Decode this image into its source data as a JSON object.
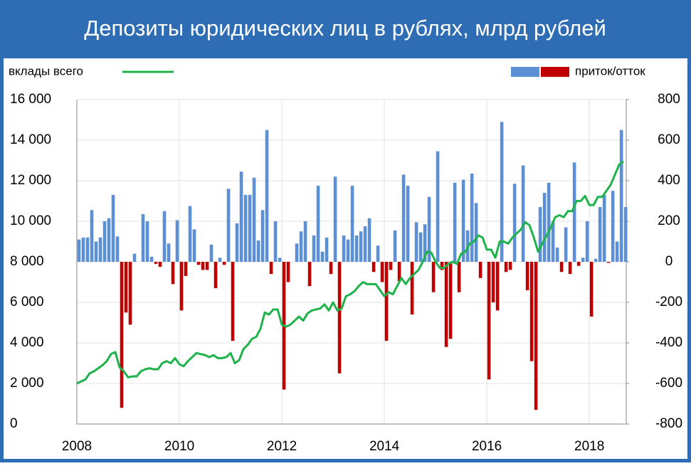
{
  "chart_data": {
    "type": "bar_line",
    "title": "Депозиты юридических лиц в рублях, млрд рублей",
    "x": [
      2008,
      2008.0833,
      2008.1667,
      2008.25,
      2008.3333,
      2008.4167,
      2008.5,
      2008.5833,
      2008.6667,
      2008.75,
      2008.8333,
      2008.9167,
      2009,
      2009.0833,
      2009.1667,
      2009.25,
      2009.3333,
      2009.4167,
      2009.5,
      2009.5833,
      2009.6667,
      2009.75,
      2009.8333,
      2009.9167,
      2010,
      2010.0833,
      2010.1667,
      2010.25,
      2010.3333,
      2010.4167,
      2010.5,
      2010.5833,
      2010.6667,
      2010.75,
      2010.8333,
      2010.9167,
      2011,
      2011.0833,
      2011.1667,
      2011.25,
      2011.3333,
      2011.4167,
      2011.5,
      2011.5833,
      2011.6667,
      2011.75,
      2011.8333,
      2011.9167,
      2012,
      2012.0833,
      2012.1667,
      2012.25,
      2012.3333,
      2012.4167,
      2012.5,
      2012.5833,
      2012.6667,
      2012.75,
      2012.8333,
      2012.9167,
      2013,
      2013.0833,
      2013.1667,
      2013.25,
      2013.3333,
      2013.4167,
      2013.5,
      2013.5833,
      2013.6667,
      2013.75,
      2013.8333,
      2013.9167,
      2014,
      2014.0833,
      2014.1667,
      2014.25,
      2014.3333,
      2014.4167,
      2014.5,
      2014.5833,
      2014.6667,
      2014.75,
      2014.8333,
      2014.9167,
      2015,
      2015.0833,
      2015.1667,
      2015.25,
      2015.3333,
      2015.4167,
      2015.5,
      2015.5833,
      2015.6667,
      2015.75,
      2015.8333,
      2015.9167,
      2016,
      2016.0833,
      2016.1667,
      2016.25,
      2016.3333,
      2016.4167,
      2016.5,
      2016.5833,
      2016.6667,
      2016.75,
      2016.8333,
      2016.9167,
      2017,
      2017.0833,
      2017.1667,
      2017.25,
      2017.3333,
      2017.4167,
      2017.5,
      2017.5833,
      2017.6667,
      2017.75,
      2017.8333,
      2017.9167,
      2018,
      2018.0833,
      2018.1667,
      2018.25,
      2018.3333,
      2018.4167,
      2018.5,
      2018.5833,
      2018.6667
    ],
    "series": [
      {
        "name": "приток/отток",
        "type": "bar",
        "axis": "y2",
        "color": "#5b8fd6",
        "negative_color": "#c00000",
        "values": [
          110,
          120,
          120,
          255,
          100,
          120,
          200,
          215,
          330,
          125,
          -720,
          -250,
          -310,
          40,
          0,
          235,
          200,
          25,
          -10,
          -25,
          250,
          90,
          -110,
          205,
          -240,
          -70,
          275,
          160,
          -15,
          -40,
          -40,
          85,
          -130,
          20,
          -15,
          360,
          -390,
          190,
          445,
          330,
          330,
          415,
          105,
          255,
          650,
          -60,
          200,
          20,
          -630,
          -100,
          0,
          90,
          150,
          200,
          -120,
          130,
          375,
          50,
          120,
          -60,
          420,
          -550,
          130,
          110,
          375,
          130,
          150,
          175,
          215,
          -50,
          80,
          -100,
          -390,
          -40,
          155,
          -95,
          430,
          375,
          -260,
          195,
          145,
          185,
          320,
          -150,
          545,
          -40,
          -420,
          -380,
          390,
          -150,
          405,
          155,
          435,
          290,
          -80,
          0,
          -580,
          -200,
          -240,
          690,
          -50,
          -40,
          385,
          0,
          475,
          -140,
          -490,
          -730,
          270,
          340,
          390,
          200,
          70,
          -50,
          170,
          -60,
          490,
          -20,
          20,
          200,
          -270,
          15,
          270,
          330,
          -5,
          350,
          100,
          650,
          270
        ]
      },
      {
        "name": "вклады всего",
        "type": "line",
        "axis": "y",
        "color": "#1db34a",
        "values": [
          2000,
          2100,
          2200,
          2500,
          2600,
          2750,
          2900,
          3100,
          3450,
          3550,
          2800,
          2600,
          2300,
          2350,
          2350,
          2600,
          2700,
          2750,
          2700,
          2700,
          3000,
          3100,
          3000,
          3250,
          2950,
          2850,
          3100,
          3300,
          3500,
          3450,
          3400,
          3300,
          3400,
          3250,
          3250,
          3300,
          3500,
          3000,
          3150,
          3700,
          3900,
          4200,
          4300,
          4700,
          5500,
          5400,
          5650,
          5650,
          4900,
          4800,
          4900,
          5100,
          5300,
          5100,
          5450,
          5600,
          5650,
          5700,
          5900,
          5600,
          6000,
          5600,
          5700,
          6300,
          6400,
          6550,
          6800,
          7000,
          6900,
          6900,
          6900,
          6600,
          6300,
          6500,
          6400,
          6800,
          7200,
          6900,
          7200,
          7400,
          7600,
          8000,
          8500,
          8450,
          8000,
          7700,
          7700,
          7900,
          8000,
          7900,
          8400,
          8500,
          8900,
          9000,
          9300,
          9200,
          8600,
          8600,
          8200,
          9000,
          9000,
          8900,
          9200,
          9400,
          9600,
          9950,
          9800,
          9200,
          8500,
          8900,
          9300,
          9700,
          10200,
          10300,
          10200,
          10500,
          10500,
          11000,
          11000,
          11250,
          10800,
          10800,
          11200,
          11200,
          11500,
          11800,
          12300,
          12800,
          12950
        ]
      }
    ],
    "xlim": [
      2008,
      2018.72
    ],
    "xticks": [
      2008,
      2010,
      2012,
      2014,
      2016,
      2018
    ],
    "ylim": [
      0,
      16000
    ],
    "yticks": [
      0,
      {
        "value": 2000,
        "label": "2 000"
      },
      {
        "value": 4000,
        "label": "4 000"
      },
      {
        "value": 6000,
        "label": "6 000"
      },
      {
        "value": 8000,
        "label": "8 000"
      },
      {
        "value": 10000,
        "label": "10 000"
      },
      {
        "value": 12000,
        "label": "12 000"
      },
      {
        "value": 14000,
        "label": "14 000"
      },
      {
        "value": 16000,
        "label": "16 000"
      }
    ],
    "y2lim": [
      -800,
      800
    ],
    "y2ticks": [
      -800,
      -600,
      -400,
      -200,
      0,
      200,
      400,
      600,
      800
    ],
    "grid": true
  }
}
